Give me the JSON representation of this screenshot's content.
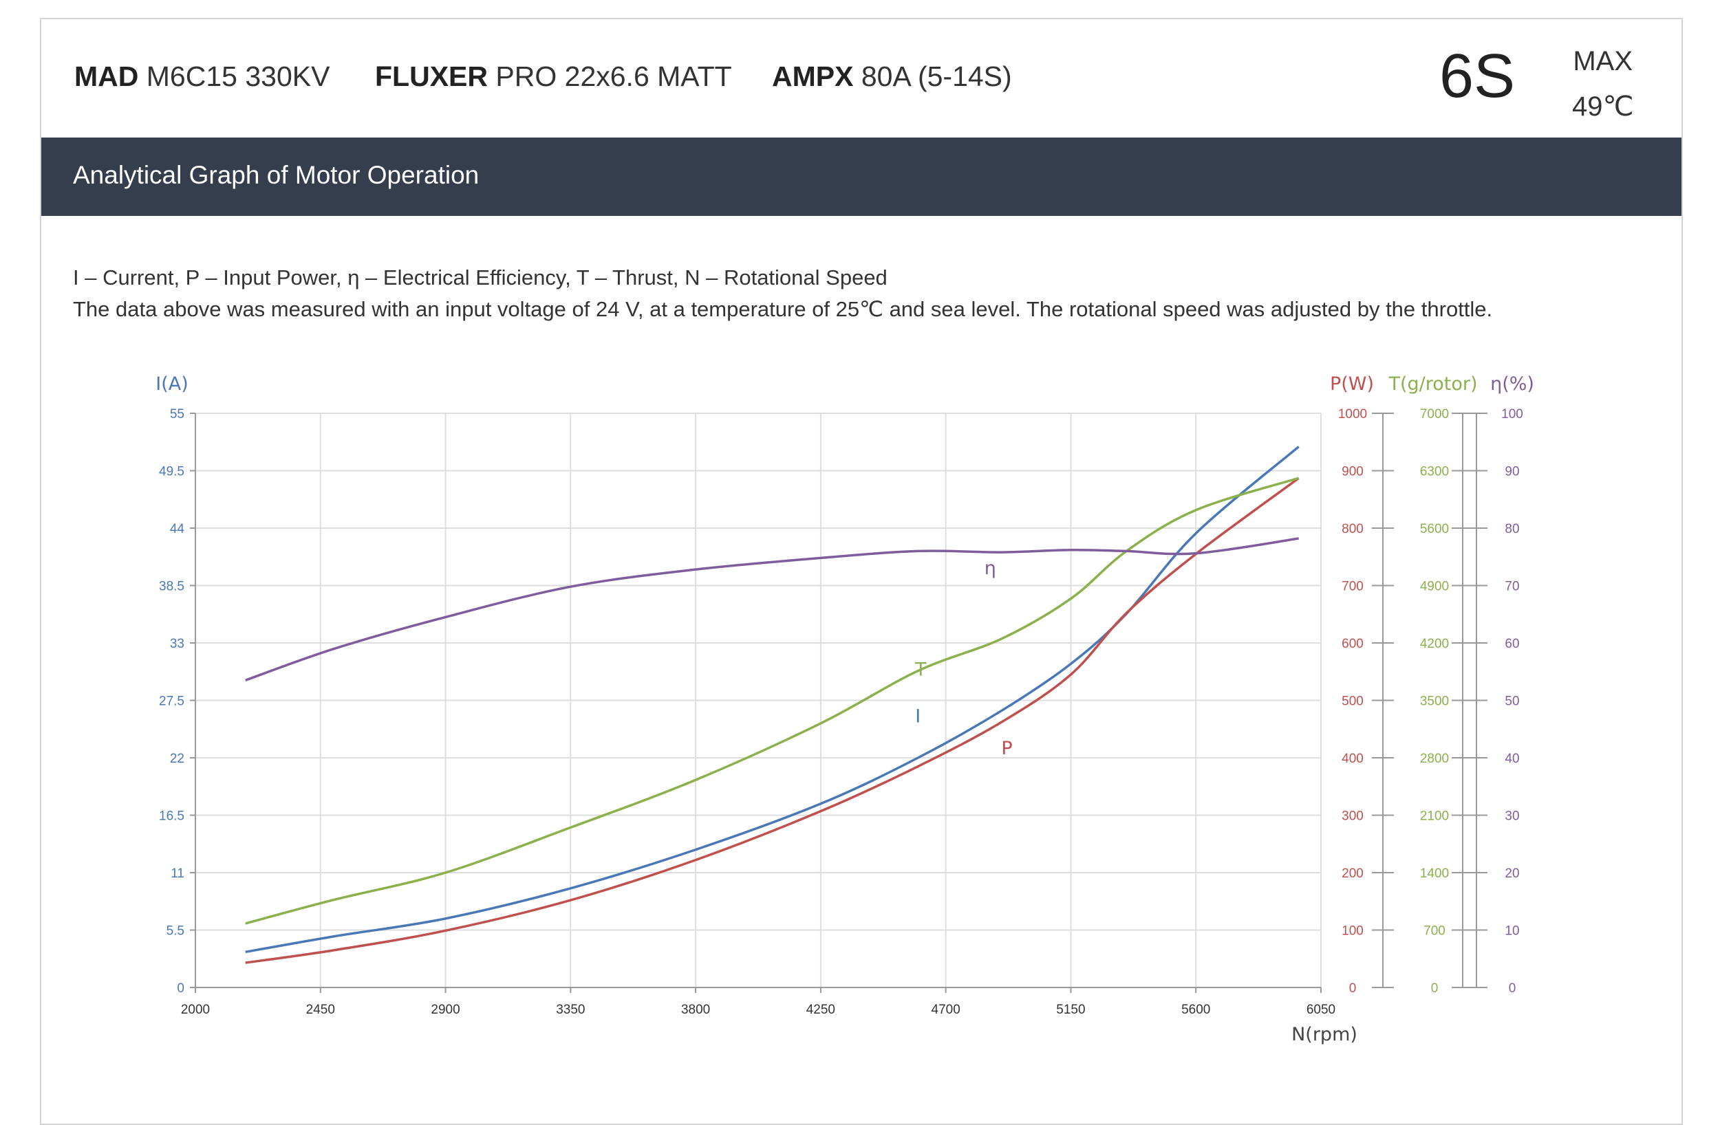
{
  "header": {
    "motor_brand": "MAD",
    "motor_model": "M6C15 330KV",
    "prop_brand": "FLUXER",
    "prop_model": "PRO 22x6.6 MATT",
    "esc_brand": "AMPX",
    "esc_model": "80A (5-14S)",
    "voltage": "6S",
    "max_label": "MAX",
    "max_temp": "49℃"
  },
  "banner": {
    "title": "Analytical Graph of Motor Operation"
  },
  "notes": {
    "line1": "I – Current, P – Input Power, η – Electrical Efficiency, T – Thrust,   N – Rotational Speed",
    "line2": "The data above was measured with an input voltage of 24 V, at a temperature of 25℃ and sea level. The rotational speed was adjusted by the throttle."
  },
  "colors": {
    "current": "#4a78b6",
    "power": "#c0504d",
    "thrust": "#8cb04c",
    "efficiency": "#7f5d9c",
    "grid": "#dedede",
    "axis": "#999999"
  },
  "chart_data": {
    "type": "line",
    "xlabel": "N(rpm)",
    "xlim": [
      2000,
      6050
    ],
    "xticks": [
      "2000",
      "2450",
      "2900",
      "3350",
      "3800",
      "4250",
      "4700",
      "5150",
      "5600",
      "6050"
    ],
    "axes": {
      "current": {
        "label": "I(A)",
        "ylim": [
          0,
          55
        ],
        "ticks": [
          "0",
          "5.5",
          "11",
          "16.5",
          "22",
          "27.5",
          "33",
          "38.5",
          "44",
          "49.5",
          "55"
        ]
      },
      "power": {
        "label": "P(W)",
        "ylim": [
          0,
          1000
        ],
        "ticks": [
          "0",
          "100",
          "200",
          "300",
          "400",
          "500",
          "600",
          "700",
          "800",
          "900",
          "1000"
        ]
      },
      "thrust": {
        "label": "T(g/rotor)",
        "ylim": [
          0,
          7000
        ],
        "ticks": [
          "0",
          "700",
          "1400",
          "2100",
          "2800",
          "3500",
          "4200",
          "4900",
          "5600",
          "6300",
          "7000"
        ]
      },
      "efficiency": {
        "label": "η(%)",
        "ylim": [
          0,
          100
        ],
        "ticks": [
          "0",
          "10",
          "20",
          "30",
          "40",
          "50",
          "60",
          "70",
          "80",
          "90",
          "100"
        ]
      }
    },
    "series": [
      {
        "name": "I",
        "axis": "current",
        "points": [
          [
            2180,
            3.4
          ],
          [
            2500,
            4.9
          ],
          [
            2900,
            6.6
          ],
          [
            3350,
            9.5
          ],
          [
            3800,
            13.2
          ],
          [
            4250,
            17.6
          ],
          [
            4600,
            22.0
          ],
          [
            4900,
            26.5
          ],
          [
            5150,
            31.0
          ],
          [
            5350,
            35.8
          ],
          [
            5600,
            43.5
          ],
          [
            5970,
            51.8
          ]
        ]
      },
      {
        "name": "P",
        "axis": "power",
        "points": [
          [
            2180,
            43
          ],
          [
            2500,
            65
          ],
          [
            2900,
            99
          ],
          [
            3350,
            152
          ],
          [
            3800,
            222
          ],
          [
            4250,
            307
          ],
          [
            4600,
            385
          ],
          [
            4900,
            462
          ],
          [
            5150,
            545
          ],
          [
            5350,
            652
          ],
          [
            5600,
            755
          ],
          [
            5970,
            887
          ]
        ]
      },
      {
        "name": "T",
        "axis": "thrust",
        "points": [
          [
            2180,
            780
          ],
          [
            2500,
            1070
          ],
          [
            2900,
            1400
          ],
          [
            3350,
            1950
          ],
          [
            3800,
            2530
          ],
          [
            4250,
            3220
          ],
          [
            4600,
            3860
          ],
          [
            4900,
            4250
          ],
          [
            5150,
            4740
          ],
          [
            5350,
            5320
          ],
          [
            5600,
            5820
          ],
          [
            5970,
            6210
          ]
        ]
      },
      {
        "name": "η",
        "axis": "efficiency",
        "points": [
          [
            2180,
            53.5
          ],
          [
            2500,
            59.0
          ],
          [
            2900,
            64.5
          ],
          [
            3350,
            69.8
          ],
          [
            3800,
            72.8
          ],
          [
            4250,
            74.8
          ],
          [
            4600,
            76.0
          ],
          [
            4900,
            75.8
          ],
          [
            5150,
            76.2
          ],
          [
            5350,
            76.0
          ],
          [
            5600,
            75.6
          ],
          [
            5970,
            78.2
          ]
        ]
      }
    ],
    "annotations": [
      {
        "text": "η",
        "series": "η",
        "x": 4860,
        "y": 72.0
      },
      {
        "text": "T",
        "series": "T",
        "x": 4610,
        "y": 3800
      },
      {
        "text": "I",
        "series": "I",
        "x": 4600,
        "y": 25.4
      },
      {
        "text": "P",
        "series": "P",
        "x": 4920,
        "y": 406
      }
    ],
    "grid": true
  }
}
